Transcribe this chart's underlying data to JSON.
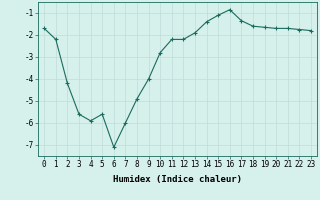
{
  "x": [
    0,
    1,
    2,
    3,
    4,
    5,
    6,
    7,
    8,
    9,
    10,
    11,
    12,
    13,
    14,
    15,
    16,
    17,
    18,
    19,
    20,
    21,
    22,
    23
  ],
  "y": [
    -1.7,
    -2.2,
    -4.2,
    -5.6,
    -5.9,
    -5.6,
    -7.1,
    -6.0,
    -4.9,
    -4.0,
    -2.8,
    -2.2,
    -2.2,
    -1.9,
    -1.4,
    -1.1,
    -0.85,
    -1.35,
    -1.6,
    -1.65,
    -1.7,
    -1.7,
    -1.75,
    -1.8
  ],
  "line_color": "#1a6b5e",
  "marker": "+",
  "marker_size": 3,
  "background_color": "#d6f0ec",
  "grid_color": "#c0dcd8",
  "xlabel": "Humidex (Indice chaleur)",
  "xlabel_fontsize": 6.5,
  "tick_fontsize": 5.5,
  "ylim": [
    -7.5,
    -0.5
  ],
  "xlim": [
    -0.5,
    23.5
  ],
  "yticks": [
    -7,
    -6,
    -5,
    -4,
    -3,
    -2,
    -1
  ],
  "xticks": [
    0,
    1,
    2,
    3,
    4,
    5,
    6,
    7,
    8,
    9,
    10,
    11,
    12,
    13,
    14,
    15,
    16,
    17,
    18,
    19,
    20,
    21,
    22,
    23
  ]
}
